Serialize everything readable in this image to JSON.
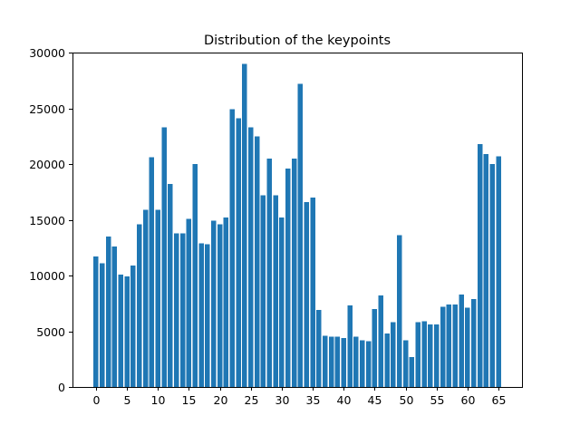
{
  "chart_data": {
    "type": "bar",
    "title": "Distribution of the keypoints",
    "xlabel": "",
    "ylabel": "",
    "bar_color": "#1f77b4",
    "ylim": [
      0,
      30000
    ],
    "xlim": [
      -3.8,
      68.8
    ],
    "xticks": [
      0,
      5,
      10,
      15,
      20,
      25,
      30,
      35,
      40,
      45,
      50,
      55,
      60,
      65
    ],
    "yticks": [
      0,
      5000,
      10000,
      15000,
      20000,
      25000,
      30000
    ],
    "categories": [
      0,
      1,
      2,
      3,
      4,
      5,
      6,
      7,
      8,
      9,
      10,
      11,
      12,
      13,
      14,
      15,
      16,
      17,
      18,
      19,
      20,
      21,
      22,
      23,
      24,
      25,
      26,
      27,
      28,
      29,
      30,
      31,
      32,
      33,
      34,
      35,
      36,
      37,
      38,
      39,
      40,
      41,
      42,
      43,
      44,
      45,
      46,
      47,
      48,
      49,
      50,
      51,
      52,
      53,
      54,
      55,
      56,
      57,
      58,
      59,
      60,
      61,
      62,
      63,
      64,
      65
    ],
    "values": [
      11700,
      11100,
      13500,
      12600,
      10100,
      9900,
      10900,
      14600,
      15900,
      20600,
      15900,
      23300,
      18200,
      13800,
      13800,
      15100,
      20000,
      12900,
      12800,
      14900,
      14600,
      15200,
      24900,
      24100,
      29000,
      23300,
      22500,
      17200,
      20500,
      17200,
      15200,
      19600,
      20500,
      27200,
      16600,
      17000,
      6900,
      4600,
      4500,
      4500,
      4400,
      7300,
      4500,
      4200,
      4100,
      7000,
      8200,
      4800,
      5800,
      13600,
      4200,
      2700,
      5800,
      5900,
      5600,
      5600,
      7200,
      7400,
      7400,
      8300,
      7100,
      7900,
      21800,
      20900,
      20000,
      20700
    ]
  }
}
